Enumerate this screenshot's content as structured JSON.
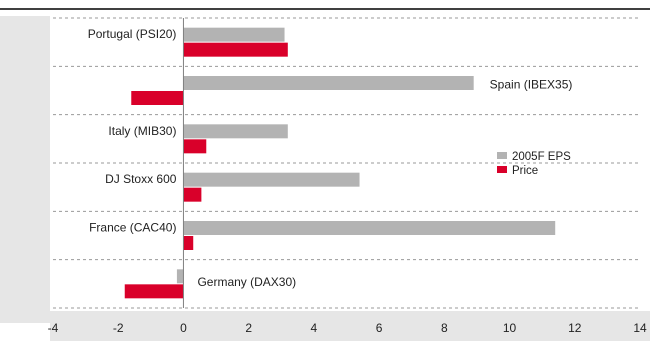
{
  "chart_data": {
    "type": "bar",
    "orientation": "horizontal",
    "categories": [
      "Portugal (PSI20)",
      "Spain (IBEX35)",
      "Italy (MIB30)",
      "DJ Stoxx 600",
      "France (CAC40)",
      "Germany (DAX30)"
    ],
    "series": [
      {
        "name": "2005F EPS",
        "color": "#b3b3b3",
        "values": [
          3.1,
          8.9,
          3.2,
          5.4,
          11.4,
          -0.2
        ]
      },
      {
        "name": "Price",
        "color": "#d9002a",
        "values": [
          3.2,
          -1.6,
          0.7,
          0.55,
          0.3,
          -1.8
        ]
      }
    ],
    "xlim": [
      -4,
      14
    ],
    "x_ticks": [
      "-4",
      "-2",
      "0",
      "2",
      "4",
      "6",
      "8",
      "10",
      "12",
      "14"
    ],
    "grid": {
      "horizontal_dashed": true
    },
    "legend_position": "right",
    "title": "",
    "xlabel": "",
    "ylabel": ""
  }
}
